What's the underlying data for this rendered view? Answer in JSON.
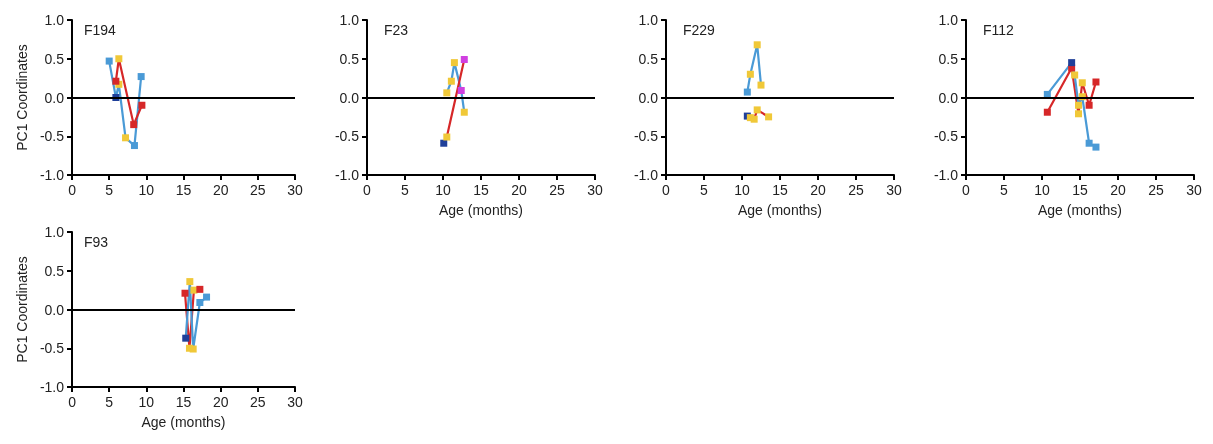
{
  "chart_data": [
    {
      "type": "line",
      "title": "F194",
      "ylabel": "PC1 Coordinates",
      "xlim": [
        0,
        30
      ],
      "xticks": [
        0,
        5,
        10,
        15,
        20,
        25,
        30
      ],
      "ylim": [
        -1,
        1
      ],
      "yticks": [
        {
          "value": -1,
          "label": "-1.0"
        },
        {
          "value": -0.5,
          "label": "-0.5"
        },
        {
          "value": 0,
          "label": "0.0"
        },
        {
          "value": 0.5,
          "label": "0.5"
        },
        {
          "value": 1,
          "label": "1.0"
        }
      ],
      "grid": false,
      "marker": "square",
      "ref_lines": [
        {
          "axis": "y",
          "value": 0,
          "color": "#000000"
        }
      ],
      "series": [
        {
          "color": "#4a9ad6",
          "x": [
            5.0,
            5.9,
            6.3,
            7.2,
            8.4,
            9.3
          ],
          "values": [
            0.47,
            0.0,
            0.17,
            -0.52,
            -0.62,
            0.27
          ],
          "colors": [
            "#4a9ad6",
            "#1f3f99",
            "#f0c838",
            "#f0c838",
            "#4a9ad6",
            "#4a9ad6"
          ]
        },
        {
          "color": "#d62728",
          "x": [
            5.9,
            6.3,
            8.3,
            9.4
          ],
          "values": [
            0.21,
            0.5,
            -0.35,
            -0.1
          ],
          "colors": [
            "#d62728",
            "#f0c838",
            "#d62728",
            "#d62728"
          ]
        }
      ]
    },
    {
      "type": "line",
      "title": "F23",
      "xlabel": "Age (months)",
      "xlim": [
        0,
        30
      ],
      "xticks": [
        0,
        5,
        10,
        15,
        20,
        25,
        30
      ],
      "ylim": [
        -1,
        1
      ],
      "yticks": [
        {
          "value": -1,
          "label": "-1.0"
        },
        {
          "value": -0.5,
          "label": "-0.5"
        },
        {
          "value": 0,
          "label": "0.0"
        },
        {
          "value": 0.5,
          "label": "0.5"
        },
        {
          "value": 1,
          "label": "1.0"
        }
      ],
      "grid": false,
      "marker": "square",
      "ref_lines": [
        {
          "axis": "y",
          "value": 0,
          "color": "#000000"
        }
      ],
      "series": [
        {
          "color": "#4a9ad6",
          "x": [
            10.5,
            11.1,
            11.5,
            12.4,
            12.8
          ],
          "values": [
            0.06,
            0.21,
            0.45,
            0.09,
            -0.19
          ],
          "colors": [
            "#f0c838",
            "#f0c838",
            "#f0c838",
            "#d040e0",
            "#f0c838"
          ]
        },
        {
          "color": "#d62728",
          "x": [
            10.1,
            10.5,
            12.8
          ],
          "values": [
            -0.59,
            -0.51,
            0.49
          ],
          "colors": [
            "#1f3f99",
            "#f0c838",
            "#d040e0"
          ]
        }
      ]
    },
    {
      "type": "line",
      "title": "F229",
      "xlabel": "Age (months)",
      "xlim": [
        0,
        30
      ],
      "xticks": [
        0,
        5,
        10,
        15,
        20,
        25,
        30
      ],
      "ylim": [
        -1,
        1
      ],
      "yticks": [
        {
          "value": -1,
          "label": "-1.0"
        },
        {
          "value": -0.5,
          "label": "-0.5"
        },
        {
          "value": 0,
          "label": "0.0"
        },
        {
          "value": 0.5,
          "label": "0.5"
        },
        {
          "value": 1,
          "label": "1.0"
        }
      ],
      "grid": false,
      "marker": "square",
      "ref_lines": [
        {
          "axis": "y",
          "value": 0,
          "color": "#000000"
        }
      ],
      "series": [
        {
          "color": "#4a9ad6",
          "x": [
            10.7,
            11.1,
            12.0,
            12.5
          ],
          "values": [
            0.07,
            0.3,
            0.68,
            0.16
          ],
          "colors": [
            "#4a9ad6",
            "#f0c838",
            "#f0c838",
            "#f0c838"
          ]
        },
        {
          "color": "#d62728",
          "x": [
            10.7,
            11.1,
            11.6,
            12.0,
            13.5
          ],
          "values": [
            -0.24,
            -0.26,
            -0.28,
            -0.16,
            -0.25
          ],
          "colors": [
            "#1f3f99",
            "#f0c838",
            "#f0c838",
            "#f0c838",
            "#f0c838"
          ]
        }
      ]
    },
    {
      "type": "line",
      "title": "F112",
      "xlabel": "Age (months)",
      "xlim": [
        0,
        30
      ],
      "xticks": [
        0,
        5,
        10,
        15,
        20,
        25,
        30
      ],
      "ylim": [
        -1,
        1
      ],
      "yticks": [
        {
          "value": -1,
          "label": "-1.0"
        },
        {
          "value": -0.5,
          "label": "-0.5"
        },
        {
          "value": 0,
          "label": "0.0"
        },
        {
          "value": 0.5,
          "label": "0.5"
        },
        {
          "value": 1,
          "label": "1.0"
        }
      ],
      "grid": false,
      "marker": "square",
      "ref_lines": [
        {
          "axis": "y",
          "value": 0,
          "color": "#000000"
        }
      ],
      "series": [
        {
          "color": "#d62728",
          "x": [
            10.7,
            13.9,
            14.8,
            15.3,
            16.2,
            17.1
          ],
          "values": [
            -0.19,
            0.38,
            -0.21,
            0.19,
            -0.1,
            0.2
          ],
          "colors": [
            "#d62728",
            "#d62728",
            "#f0c838",
            "#f0c838",
            "#d62728",
            "#d62728"
          ]
        },
        {
          "color": "#4a9ad6",
          "x": [
            10.7,
            13.9,
            14.3,
            14.8,
            15.3,
            16.2,
            17.1
          ],
          "values": [
            0.04,
            0.45,
            0.29,
            -0.1,
            0.01,
            -0.59,
            -0.64
          ],
          "colors": [
            "#4a9ad6",
            "#1f3f99",
            "#f0c838",
            "#f0c838",
            "#f0c838",
            "#4a9ad6",
            "#4a9ad6"
          ]
        }
      ]
    },
    {
      "type": "line",
      "title": "F93",
      "xlabel": "Age (months)",
      "ylabel": "PC1 Coordinates",
      "xlim": [
        0,
        30
      ],
      "xticks": [
        0,
        5,
        10,
        15,
        20,
        25,
        30
      ],
      "ylim": [
        -1,
        1
      ],
      "yticks": [
        {
          "value": -1,
          "label": "-1.0"
        },
        {
          "value": -0.5,
          "label": "-0.5"
        },
        {
          "value": 0,
          "label": "0.0"
        },
        {
          "value": 0.5,
          "label": "0.5"
        },
        {
          "value": 1,
          "label": "1.0"
        }
      ],
      "grid": false,
      "marker": "square",
      "ref_lines": [
        {
          "axis": "y",
          "value": 0,
          "color": "#000000"
        }
      ],
      "series": [
        {
          "color": "#d62728",
          "x": [
            15.2,
            15.8,
            16.4,
            17.2
          ],
          "values": [
            0.21,
            -0.5,
            0.25,
            0.26
          ],
          "colors": [
            "#d62728",
            "#f0c838",
            "#f0c838",
            "#d62728"
          ]
        },
        {
          "color": "#4a9ad6",
          "x": [
            15.3,
            15.85,
            16.3,
            17.2,
            18.1
          ],
          "values": [
            -0.37,
            0.36,
            -0.51,
            0.09,
            0.16
          ],
          "colors": [
            "#1f3f99",
            "#f0c838",
            "#f0c838",
            "#4a9ad6",
            "#4a9ad6"
          ]
        }
      ]
    }
  ]
}
